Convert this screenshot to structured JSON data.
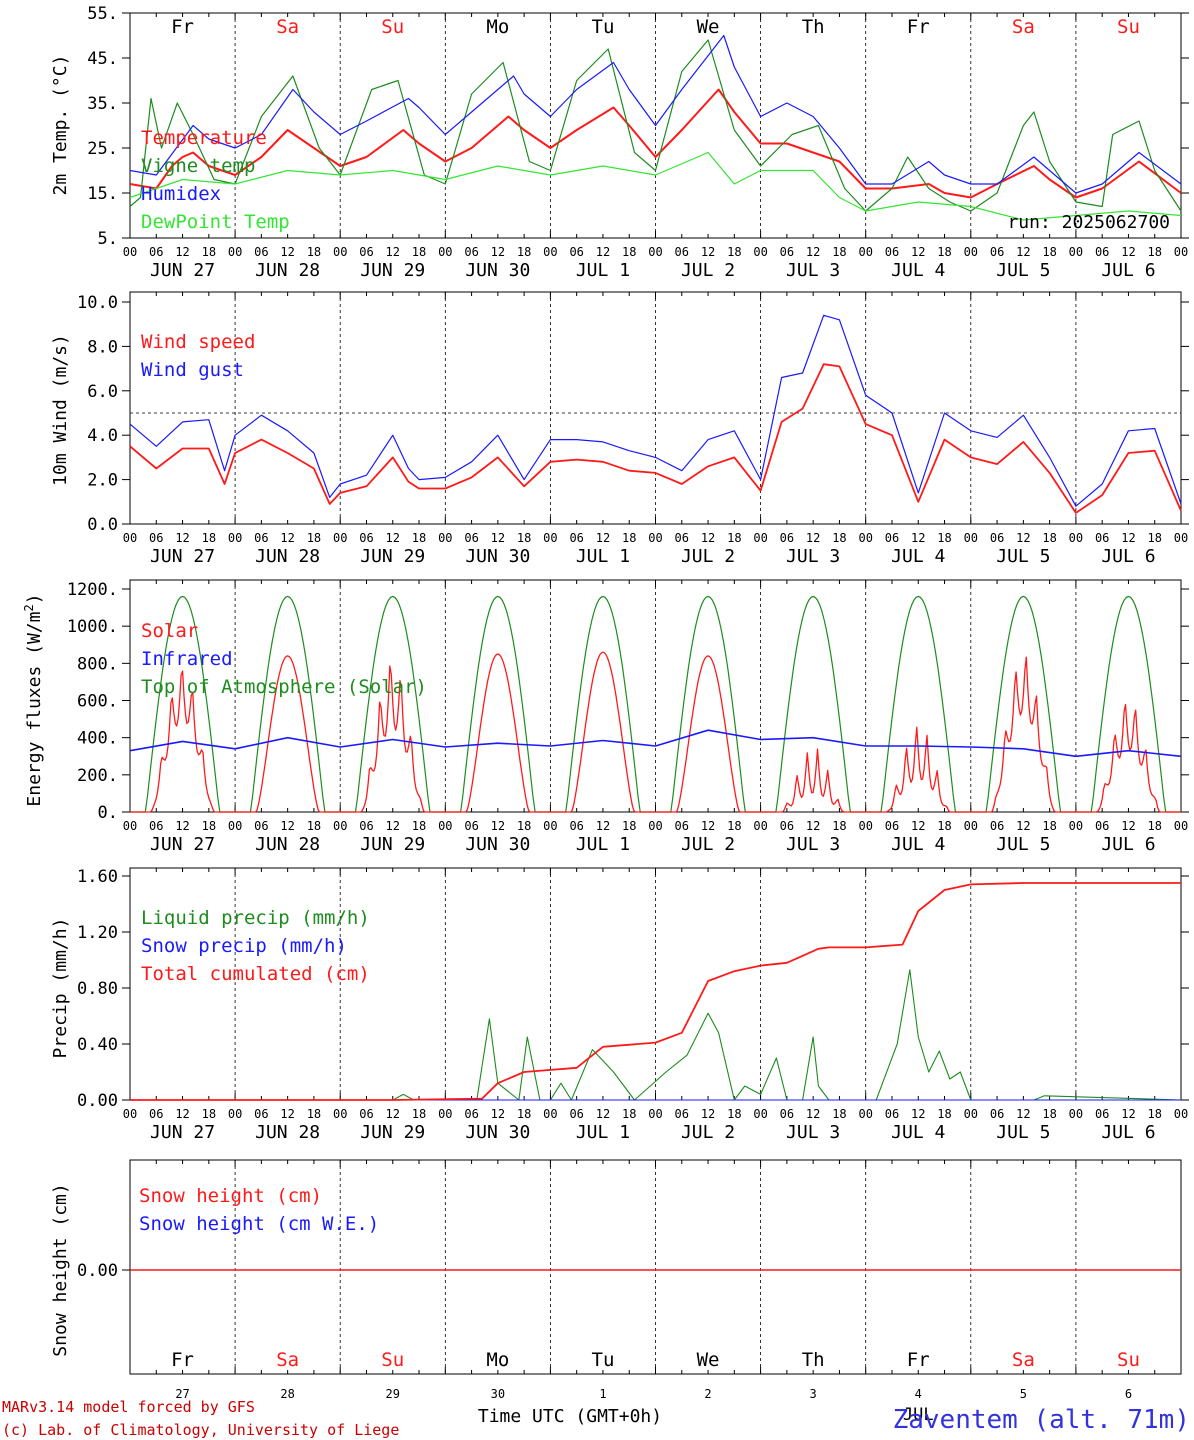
{
  "colors": {
    "red": "#ff1a1a",
    "green": "#1e8c1e",
    "lime": "#33e633",
    "blue": "#1a1aff",
    "black": "#000000",
    "credit_red": "#cc0000",
    "station_blue": "#3333dd"
  },
  "days": {
    "weekdays": [
      "Fr",
      "Sa",
      "Su",
      "Mo",
      "Tu",
      "We",
      "Th",
      "Fr",
      "Sa",
      "Su"
    ],
    "weekend": [
      false,
      true,
      true,
      false,
      false,
      false,
      false,
      false,
      true,
      true
    ],
    "dates": [
      "JUN 27",
      "JUN 28",
      "JUN 29",
      "JUN 30",
      "JUL  1",
      "JUL  2",
      "JUL  3",
      "JUL  4",
      "JUL  5",
      "JUL  6"
    ],
    "hour_ticks": [
      "00",
      "06",
      "12",
      "18"
    ],
    "end_tick": "00",
    "day_numbers": [
      "27",
      "28",
      "29",
      "30",
      "1",
      "2",
      "3",
      "4",
      "5",
      "6"
    ],
    "month_label": "JUL"
  },
  "panels": {
    "temperature": {
      "ylabel": "2m Temp. (°C)",
      "yticks": [
        "55.",
        "45.",
        "35.",
        "25.",
        "15.",
        "5."
      ],
      "legend": [
        "Temperature",
        "Vigne temp",
        "Humidex",
        "DewPoint Temp"
      ],
      "run_label": "run: 2025062700"
    },
    "wind": {
      "ylabel": "10m Wind (m/s)",
      "yticks": [
        "10.0",
        "8.0",
        "6.0",
        "4.0",
        "2.0",
        "0.0"
      ],
      "legend": [
        "Wind speed",
        "Wind gust"
      ]
    },
    "energy": {
      "ylabel_main": "Energy fluxes (W/m",
      "ylabel_sup": "2",
      "ylabel_end": ")",
      "yticks": [
        "1200.",
        "1000.",
        "800.",
        "600.",
        "400.",
        "200.",
        "0."
      ],
      "legend": [
        "Solar",
        "Infrared",
        "Top of Atmosphere (Solar)"
      ]
    },
    "precip": {
      "ylabel": "Precip (mm/h)",
      "yticks": [
        "1.60",
        "1.20",
        "0.80",
        "0.40",
        "0.00"
      ],
      "legend": [
        "Liquid precip (mm/h)",
        "Snow precip (mm/h)",
        "Total cumulated (cm)"
      ]
    },
    "snow": {
      "ylabel": "Snow height (cm)",
      "ytick": "0.00",
      "legend": [
        "Snow height (cm)",
        "Snow height (cm W.E.)"
      ]
    }
  },
  "footer": {
    "credit_line1": "MARv3.14 model forced by GFS",
    "credit_line2": "(c) Lab. of Climatology, University of Liege",
    "xlabel": "Time UTC (GMT+0h)",
    "station": "Zaventem (alt. 71m)"
  },
  "chart_data": [
    {
      "type": "line",
      "title": "",
      "ylabel": "2m Temp. (°C)",
      "ylim": [
        5,
        55
      ],
      "x_unit": "days since Jun 27 00 UTC",
      "grid": "vertical dotted at 00 UTC",
      "legend_position": "top-left",
      "series": [
        {
          "name": "Temperature",
          "color": "red",
          "x": [
            0,
            0.25,
            0.4,
            0.5,
            0.6,
            0.75,
            1.0,
            1.25,
            1.5,
            1.75,
            2.0,
            2.25,
            2.6,
            2.75,
            3.0,
            3.25,
            3.6,
            3.75,
            4.0,
            4.25,
            4.6,
            4.75,
            5.0,
            5.25,
            5.6,
            5.75,
            6.0,
            6.25,
            6.5,
            6.75,
            7.0,
            7.25,
            7.6,
            7.75,
            8.0,
            8.25,
            8.6,
            8.75,
            9.0,
            9.25,
            9.6,
            10.0
          ],
          "y": [
            17,
            16,
            21,
            23,
            24,
            21,
            19,
            23,
            29,
            25,
            21,
            23,
            29,
            26,
            22,
            25,
            32,
            29,
            25,
            29,
            34,
            30,
            23,
            29,
            38,
            33,
            26,
            26,
            24,
            22,
            16,
            16,
            17,
            15,
            14,
            17,
            21,
            18,
            14,
            16,
            22,
            15
          ]
        },
        {
          "name": "Vigne temp",
          "color": "green",
          "x": [
            0,
            0.1,
            0.2,
            0.3,
            0.45,
            0.6,
            0.8,
            1.0,
            1.25,
            1.55,
            1.8,
            2.0,
            2.3,
            2.55,
            2.8,
            3.0,
            3.25,
            3.55,
            3.8,
            4.0,
            4.25,
            4.55,
            4.8,
            5.0,
            5.25,
            5.5,
            5.75,
            6.0,
            6.3,
            6.55,
            6.8,
            7.0,
            7.1,
            7.25,
            7.4,
            7.6,
            7.8,
            8.0,
            8.25,
            8.5,
            8.6,
            8.75,
            9.0,
            9.25,
            9.35,
            9.6,
            9.75,
            10.0
          ],
          "y": [
            12,
            14,
            36,
            25,
            35,
            28,
            18,
            17,
            32,
            41,
            25,
            19,
            38,
            40,
            19,
            17,
            37,
            44,
            22,
            20,
            40,
            47,
            24,
            20,
            42,
            49,
            29,
            21,
            28,
            30,
            16,
            11,
            13,
            16,
            23,
            16,
            13,
            11,
            15,
            30,
            33,
            22,
            13,
            12,
            28,
            31,
            20,
            11
          ]
        },
        {
          "name": "Humidex",
          "color": "blue",
          "x": [
            0,
            0.25,
            0.6,
            0.75,
            1.0,
            1.25,
            1.55,
            1.75,
            2.0,
            2.25,
            2.65,
            2.75,
            3.0,
            3.25,
            3.65,
            3.75,
            4.0,
            4.25,
            4.6,
            4.75,
            5.0,
            5.25,
            5.65,
            5.75,
            6.0,
            6.25,
            6.5,
            6.75,
            7.0,
            7.25,
            7.6,
            7.75,
            8.0,
            8.25,
            8.6,
            8.75,
            9.0,
            9.25,
            9.6,
            10.0
          ],
          "y": [
            20,
            19,
            30,
            27,
            25,
            28,
            38,
            33,
            28,
            31,
            36,
            34,
            28,
            33,
            41,
            37,
            32,
            38,
            44,
            38,
            30,
            38,
            50,
            43,
            32,
            35,
            32,
            25,
            17,
            17,
            22,
            19,
            17,
            17,
            23,
            20,
            15,
            17,
            24,
            17
          ]
        },
        {
          "name": "DewPoint Temp",
          "color": "lime",
          "x": [
            0,
            0.5,
            1.0,
            1.5,
            2.0,
            2.5,
            3.0,
            3.5,
            4.0,
            4.5,
            5.0,
            5.5,
            5.75,
            6.0,
            6.5,
            6.75,
            7.0,
            7.5,
            8.0,
            8.5,
            9.0,
            9.5,
            10.0
          ],
          "y": [
            14,
            18,
            17,
            20,
            19,
            20,
            18,
            21,
            19,
            21,
            19,
            24,
            17,
            20,
            20,
            14,
            11,
            13,
            12,
            9,
            10,
            11,
            10
          ]
        }
      ]
    },
    {
      "type": "line",
      "title": "",
      "ylabel": "10m Wind (m/s)",
      "ylim": [
        0,
        10
      ],
      "reference_line": 5.0,
      "x_unit": "days since Jun 27 00 UTC",
      "legend_position": "top-left",
      "series": [
        {
          "name": "Wind speed",
          "color": "red",
          "x": [
            0,
            0.25,
            0.5,
            0.75,
            0.9,
            1.0,
            1.25,
            1.5,
            1.75,
            1.9,
            2.0,
            2.25,
            2.5,
            2.65,
            2.75,
            3.0,
            3.25,
            3.5,
            3.75,
            4.0,
            4.25,
            4.5,
            4.75,
            5.0,
            5.25,
            5.5,
            5.75,
            6.0,
            6.2,
            6.4,
            6.6,
            6.75,
            7.0,
            7.25,
            7.5,
            7.75,
            8.0,
            8.25,
            8.5,
            8.75,
            9.0,
            9.25,
            9.5,
            9.75,
            10.0
          ],
          "y": [
            3.5,
            2.5,
            3.4,
            3.4,
            1.8,
            3.2,
            3.8,
            3.2,
            2.5,
            0.9,
            1.4,
            1.7,
            3.0,
            1.9,
            1.6,
            1.6,
            2.1,
            3.0,
            1.7,
            2.8,
            2.9,
            2.8,
            2.4,
            2.3,
            1.8,
            2.6,
            3.0,
            1.5,
            4.6,
            5.2,
            7.2,
            7.1,
            4.5,
            4.0,
            1.0,
            3.8,
            3.0,
            2.7,
            3.7,
            2.3,
            0.5,
            1.3,
            3.2,
            3.3,
            0.6
          ]
        },
        {
          "name": "Wind gust",
          "color": "blue",
          "x": [
            0,
            0.25,
            0.5,
            0.75,
            0.9,
            1.0,
            1.25,
            1.5,
            1.75,
            1.9,
            2.0,
            2.25,
            2.5,
            2.65,
            2.75,
            3.0,
            3.25,
            3.5,
            3.75,
            4.0,
            4.25,
            4.5,
            4.75,
            5.0,
            5.25,
            5.5,
            5.75,
            6.0,
            6.2,
            6.4,
            6.6,
            6.75,
            7.0,
            7.25,
            7.5,
            7.75,
            8.0,
            8.25,
            8.5,
            8.75,
            9.0,
            9.25,
            9.5,
            9.75,
            10.0
          ],
          "y": [
            4.5,
            3.5,
            4.6,
            4.7,
            2.4,
            4.0,
            4.9,
            4.2,
            3.2,
            1.2,
            1.8,
            2.2,
            4.0,
            2.5,
            2.0,
            2.1,
            2.8,
            4.0,
            2.0,
            3.8,
            3.8,
            3.7,
            3.3,
            3.0,
            2.4,
            3.8,
            4.2,
            2.0,
            6.6,
            6.8,
            9.4,
            9.2,
            5.8,
            5.0,
            1.4,
            5.0,
            4.2,
            3.9,
            4.9,
            3.0,
            0.8,
            1.8,
            4.2,
            4.3,
            0.9
          ]
        }
      ]
    },
    {
      "type": "line",
      "title": "",
      "ylabel": "Energy fluxes (W/m2)",
      "ylim": [
        0,
        1200
      ],
      "x_unit": "days since Jun 27 00 UTC",
      "legend_position": "top-left",
      "series": [
        {
          "name": "Solar",
          "color": "red",
          "daily_peak": [
            820,
            840,
            860,
            850,
            860,
            840,
            350,
            480,
            880,
            640
          ]
        },
        {
          "name": "Infrared",
          "color": "blue",
          "x": [
            0,
            0.5,
            1.0,
            1.5,
            2.0,
            2.5,
            3.0,
            3.5,
            4.0,
            4.5,
            5.0,
            5.5,
            6.0,
            6.5,
            7.0,
            7.5,
            8.0,
            8.5,
            9.0,
            9.5,
            10.0
          ],
          "y": [
            330,
            380,
            340,
            400,
            350,
            390,
            350,
            370,
            355,
            385,
            355,
            440,
            390,
            400,
            355,
            355,
            350,
            340,
            300,
            330,
            300
          ]
        },
        {
          "name": "Top of Atmosphere (Solar)",
          "color": "green",
          "daily_peak": [
            1160,
            1160,
            1160,
            1160,
            1160,
            1160,
            1160,
            1160,
            1160,
            1160
          ]
        }
      ]
    },
    {
      "type": "line",
      "title": "",
      "ylabel": "Precip (mm/h)",
      "ylim": [
        0,
        1.6
      ],
      "x_unit": "days since Jun 27 00 UTC",
      "legend_position": "top-left",
      "series": [
        {
          "name": "Liquid precip (mm/h)",
          "color": "green",
          "x": [
            0,
            2.5,
            2.6,
            2.7,
            3.3,
            3.42,
            3.5,
            3.7,
            3.78,
            3.9,
            4.0,
            4.1,
            4.2,
            4.4,
            4.5,
            4.6,
            4.8,
            5.1,
            5.3,
            5.5,
            5.6,
            5.75,
            5.85,
            6.0,
            6.15,
            6.25,
            6.4,
            6.5,
            6.55,
            6.65,
            7.1,
            7.3,
            7.42,
            7.5,
            7.6,
            7.7,
            7.8,
            7.9,
            8.0,
            8.6,
            8.7,
            10.0
          ],
          "y": [
            0,
            0,
            0.04,
            0,
            0,
            0.58,
            0.12,
            0,
            0.45,
            0,
            0,
            0.12,
            0,
            0.36,
            0.28,
            0.2,
            0,
            0.2,
            0.32,
            0.62,
            0.48,
            0,
            0.1,
            0.04,
            0.3,
            0,
            0,
            0.45,
            0.1,
            0,
            0,
            0.4,
            0.93,
            0.45,
            0.2,
            0.35,
            0.15,
            0.2,
            0,
            0,
            0.03,
            0
          ]
        },
        {
          "name": "Snow precip (mm/h)",
          "color": "blue",
          "x": [
            0,
            10
          ],
          "y": [
            0,
            0
          ]
        },
        {
          "name": "Total cumulated (cm)",
          "color": "red",
          "x": [
            0,
            2.5,
            3.35,
            3.5,
            3.75,
            4.25,
            4.5,
            5.0,
            5.25,
            5.5,
            5.75,
            6.0,
            6.25,
            6.55,
            6.65,
            7.0,
            7.35,
            7.5,
            7.75,
            8.0,
            8.5,
            10.0
          ],
          "y": [
            0,
            0,
            0.01,
            0.12,
            0.2,
            0.23,
            0.38,
            0.41,
            0.48,
            0.85,
            0.92,
            0.96,
            0.98,
            1.08,
            1.09,
            1.09,
            1.11,
            1.35,
            1.5,
            1.54,
            1.55,
            1.55
          ]
        }
      ]
    },
    {
      "type": "line",
      "title": "",
      "ylabel": "Snow height (cm)",
      "x_unit": "days since Jun 27 00 UTC",
      "legend_position": "top-left",
      "series": [
        {
          "name": "Snow height (cm)",
          "color": "red",
          "x": [
            0,
            10
          ],
          "y": [
            0,
            0
          ]
        },
        {
          "name": "Snow height (cm W.E.)",
          "color": "blue",
          "x": [
            0,
            10
          ],
          "y": [
            0,
            0
          ]
        }
      ]
    }
  ]
}
